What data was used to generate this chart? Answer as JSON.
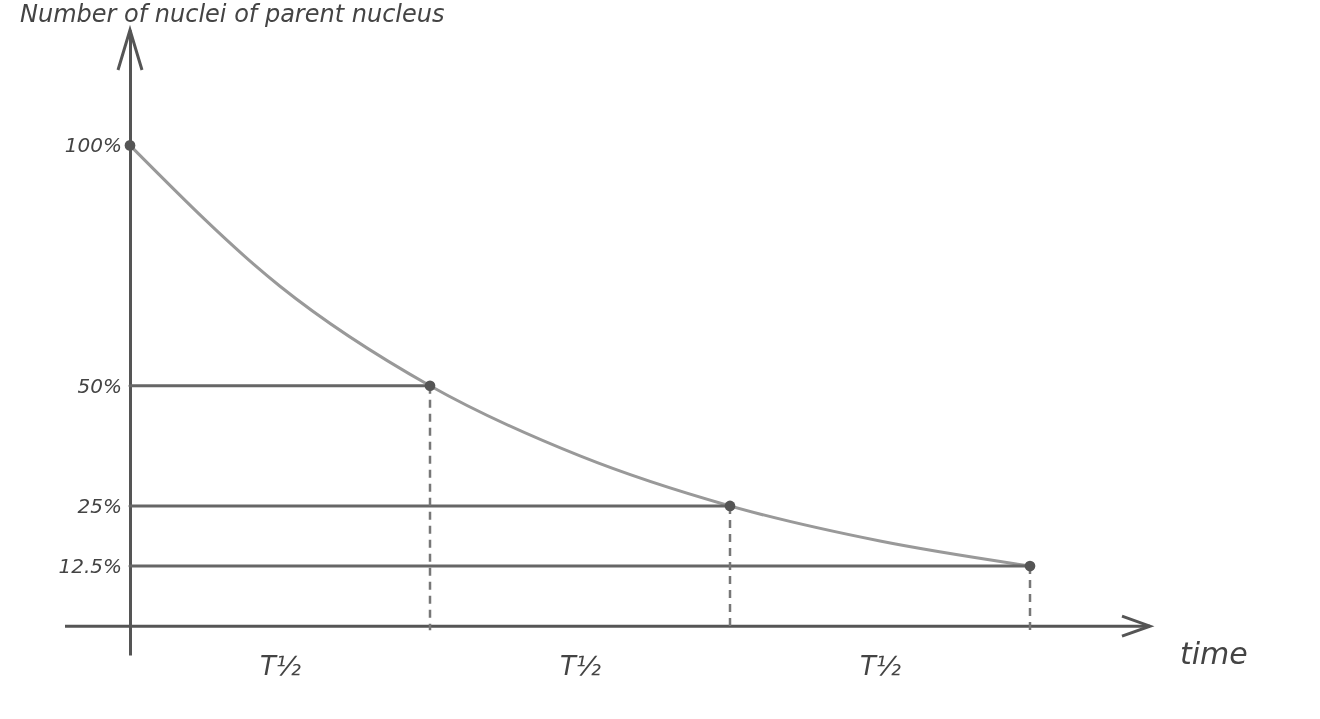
{
  "chart_data": {
    "type": "line",
    "title": "Number of nuclei of parent nucleus",
    "xlabel": "time",
    "categories": [
      null,
      "T½",
      null,
      "T½",
      null,
      "T½",
      null
    ],
    "ylim": [
      -6,
      124
    ],
    "yticks": [
      {
        "value": 100,
        "label": "100%"
      },
      {
        "value": 50,
        "label": "50%"
      },
      {
        "value": 25,
        "label": "25%"
      },
      {
        "value": 12.5,
        "label": "12.5%"
      }
    ],
    "series": [
      {
        "color": "#999999",
        "line_style": "solid",
        "values": [
          100,
          70.7,
          50,
          35.4,
          25,
          17.7,
          12.5
        ]
      },
      {
        "color": "#666666",
        "line_style": "solid",
        "values": [
          50,
          50,
          50,
          null,
          null,
          null,
          null
        ]
      },
      {
        "color": "#666666",
        "line_style": "solid",
        "values": [
          25,
          25,
          25,
          25,
          25,
          null,
          null
        ]
      },
      {
        "color": "#666666",
        "line_style": "solid",
        "values": [
          12.5,
          12.5,
          12.5,
          12.5,
          12.5,
          12.5,
          12.5
        ]
      },
      {
        "type": "scatter",
        "color": "#555555",
        "marker": "circle",
        "values": [
          100,
          null,
          50,
          null,
          25,
          null,
          12.5
        ]
      }
    ]
  }
}
